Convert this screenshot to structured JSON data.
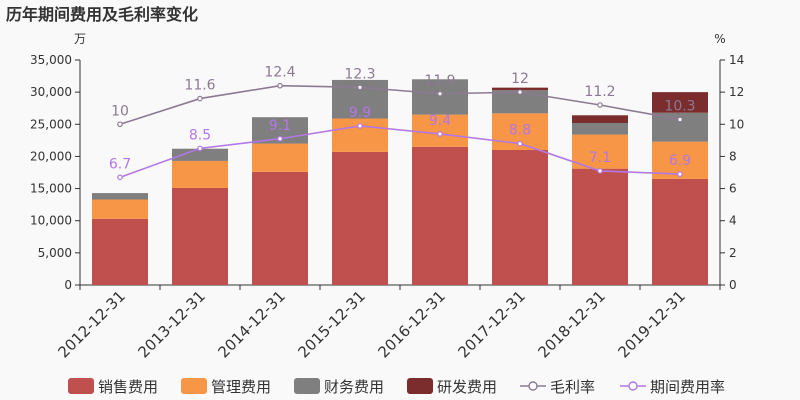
{
  "chart_data": {
    "type": "bar",
    "title": "历年期间费用及毛利率变化",
    "left_unit": "万",
    "right_unit": "%",
    "categories": [
      "2012-12-31",
      "2013-12-31",
      "2014-12-31",
      "2015-12-31",
      "2016-12-31",
      "2017-12-31",
      "2018-12-31",
      "2019-12-31"
    ],
    "ylim_left": [
      0,
      35000
    ],
    "yticks_left": [
      "0",
      "5,000",
      "10,000",
      "15,000",
      "20,000",
      "25,000",
      "30,000",
      "35,000"
    ],
    "ylim_right": [
      0,
      14
    ],
    "yticks_right": [
      "0",
      "2",
      "4",
      "6",
      "8",
      "10",
      "12",
      "14"
    ],
    "stacked_series": [
      {
        "name": "销售费用",
        "color": "#c0504d",
        "values": [
          10300,
          15100,
          17600,
          20700,
          21500,
          21000,
          18100,
          16500
        ]
      },
      {
        "name": "管理费用",
        "color": "#f79646",
        "values": [
          3000,
          4200,
          4400,
          5200,
          5000,
          5700,
          5300,
          5800
        ]
      },
      {
        "name": "财务费用",
        "color": "#7f7f7f",
        "values": [
          1000,
          1900,
          4100,
          6000,
          5500,
          3600,
          1800,
          4500
        ]
      },
      {
        "name": "研发费用",
        "color": "#7b2c2c",
        "values": [
          0,
          0,
          0,
          0,
          0,
          400,
          1200,
          3200
        ]
      }
    ],
    "line_series": [
      {
        "name": "毛利率",
        "color": "#8c7a93",
        "values": [
          10,
          11.6,
          12.4,
          12.3,
          11.9,
          12,
          11.2,
          10.3
        ],
        "labels": [
          "10",
          "11.6",
          "12.4",
          "12.3",
          "11.9",
          "12",
          "11.2",
          "10.3"
        ]
      },
      {
        "name": "期间费用率",
        "color": "#b377e6",
        "values": [
          6.7,
          8.5,
          9.1,
          9.9,
          9.4,
          8.8,
          7.1,
          6.9
        ],
        "labels": [
          "6.7",
          "8.5",
          "9.1",
          "9.9",
          "9.4",
          "8.8",
          "7.1",
          "6.9"
        ]
      }
    ],
    "grid": false,
    "legend_position": "bottom"
  }
}
